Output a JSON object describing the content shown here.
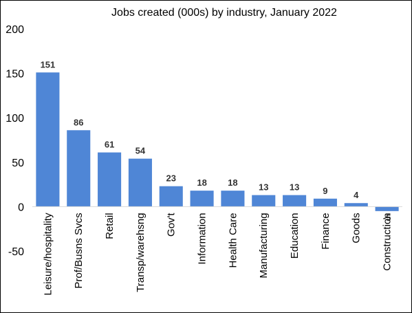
{
  "chart_data": {
    "type": "bar",
    "title": "Jobs created (000s) by industry, January 2022",
    "xlabel": "",
    "ylabel": "",
    "categories": [
      "Leisure/hospitality",
      "Prof/Busns Svcs",
      "Retail",
      "Transp/warehsng",
      "Gov't",
      "Information",
      "Health Care",
      "Manufacturing",
      "Education",
      "Finance",
      "Goods",
      "Construction"
    ],
    "values": [
      151,
      86,
      61,
      54,
      23,
      18,
      18,
      13,
      13,
      9,
      4,
      -5
    ],
    "data_labels": [
      "151",
      "86",
      "61",
      "54",
      "23",
      "18",
      "18",
      "13",
      "13",
      "9",
      "4",
      "-5"
    ],
    "ylim": [
      -50,
      200
    ],
    "yticks": [
      -50,
      0,
      50,
      100,
      150,
      200
    ],
    "ytick_labels": [
      "-50",
      "0",
      "50",
      "100",
      "150",
      "200"
    ],
    "grid": false,
    "legend": "none",
    "bar_color": "#4f86d6"
  }
}
